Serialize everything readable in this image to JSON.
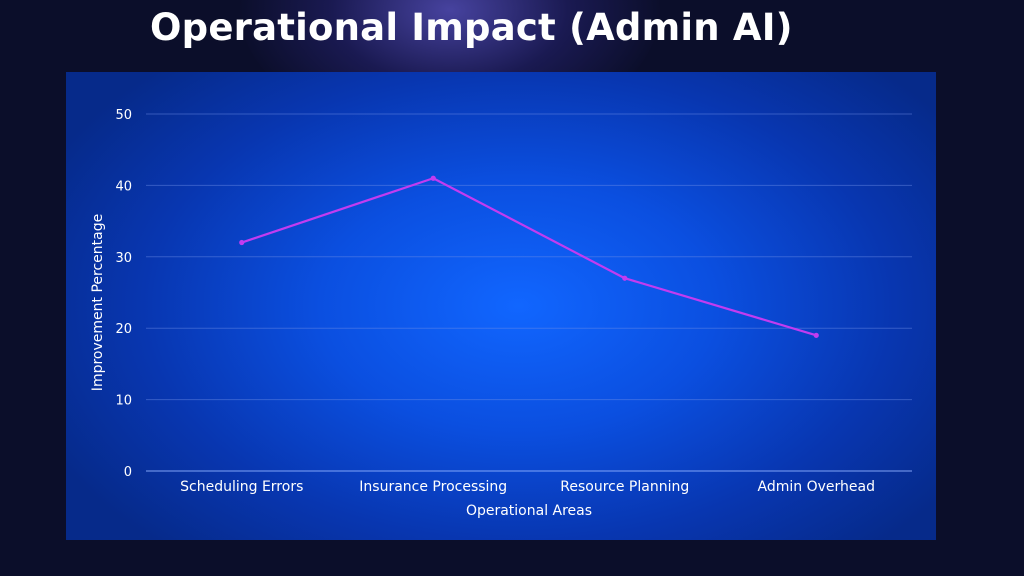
{
  "slide": {
    "title": "Operational Impact (Admin AI)"
  },
  "chart_data": {
    "type": "line",
    "title": "",
    "xlabel": "Operational Areas",
    "ylabel": "Improvement Percentage",
    "categories": [
      "Scheduling Errors",
      "Insurance Processing",
      "Resource Planning",
      "Admin Overhead"
    ],
    "series": [
      {
        "values": [
          32,
          41,
          27,
          19
        ],
        "color": "#c23cf0"
      }
    ],
    "ylim": [
      0,
      50
    ],
    "yticks": [
      0,
      10,
      20,
      30,
      40,
      50
    ],
    "grid": true,
    "legend": "none"
  },
  "colors": {
    "background": "#0b0e2a",
    "panel": "#0b4fe0",
    "line": "#c23cf0",
    "grid": "#6f8fe6",
    "text": "#ffffff"
  }
}
